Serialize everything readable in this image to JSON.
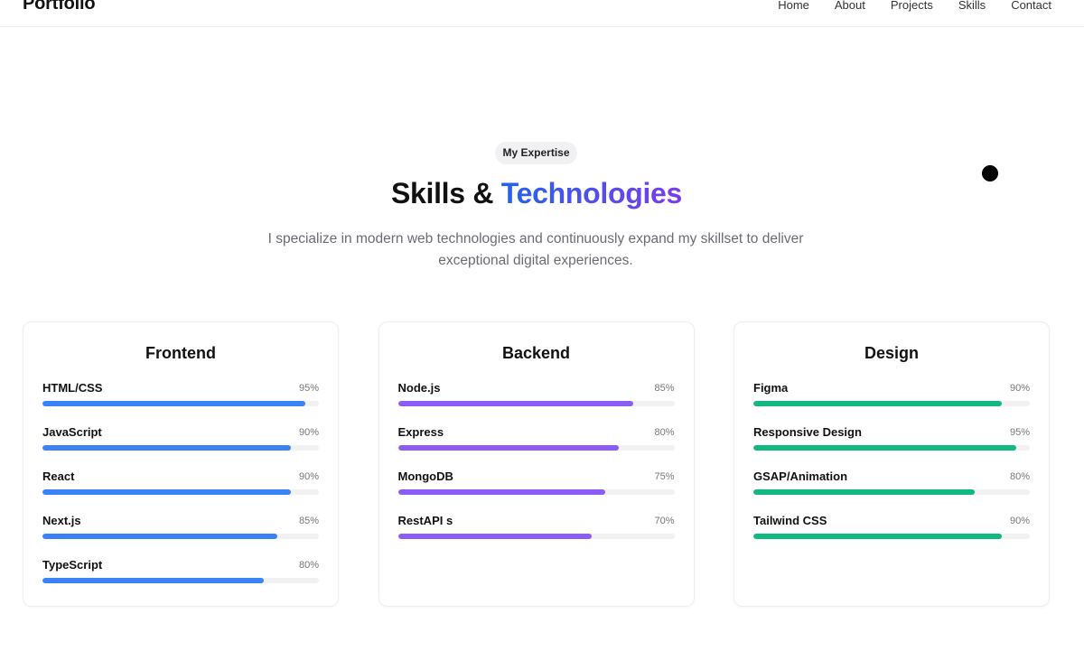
{
  "header": {
    "logo": "Portfolio",
    "nav": [
      {
        "label": "Home"
      },
      {
        "label": "About"
      },
      {
        "label": "Projects"
      },
      {
        "label": "Skills"
      },
      {
        "label": "Contact"
      }
    ]
  },
  "hero": {
    "badge": "My Expertise",
    "title_plain": "Skills & ",
    "title_accent": "Technologies",
    "description": "I specialize in modern web technologies and continuously expand my skillset to deliver exceptional digital experiences."
  },
  "categories": [
    {
      "title": "Frontend",
      "color": "#3b82f6",
      "skills": [
        {
          "name": "HTML/CSS",
          "percent_label": "95%",
          "percent": 95
        },
        {
          "name": "JavaScript",
          "percent_label": "90%",
          "percent": 90
        },
        {
          "name": "React",
          "percent_label": "90%",
          "percent": 90
        },
        {
          "name": "Next.js",
          "percent_label": "85%",
          "percent": 85
        },
        {
          "name": "TypeScript",
          "percent_label": "80%",
          "percent": 80
        }
      ]
    },
    {
      "title": "Backend",
      "color": "#8b5cf6",
      "skills": [
        {
          "name": "Node.js",
          "percent_label": "85%",
          "percent": 85
        },
        {
          "name": "Express",
          "percent_label": "80%",
          "percent": 80
        },
        {
          "name": "MongoDB",
          "percent_label": "75%",
          "percent": 75
        },
        {
          "name": "RestAPI s",
          "percent_label": "70%",
          "percent": 70
        }
      ]
    },
    {
      "title": "Design",
      "color": "#10b981",
      "skills": [
        {
          "name": "Figma",
          "percent_label": "90%",
          "percent": 90
        },
        {
          "name": "Responsive Design",
          "percent_label": "95%",
          "percent": 95
        },
        {
          "name": "GSAP/Animation",
          "percent_label": "80%",
          "percent": 80
        },
        {
          "name": "Tailwind CSS",
          "percent_label": "90%",
          "percent": 90
        }
      ]
    }
  ]
}
